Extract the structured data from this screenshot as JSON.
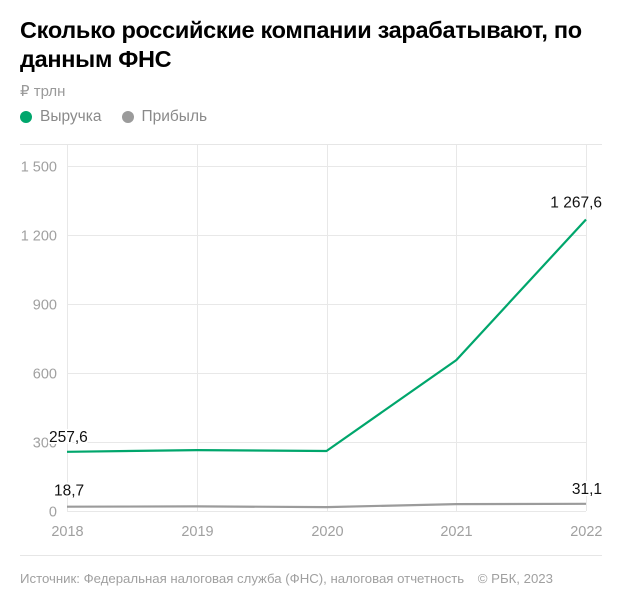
{
  "header": {
    "title": "Сколько российские компании зарабатывают, по данным ФНС",
    "unit": "₽ трлн"
  },
  "legend": [
    {
      "label": "Выручка",
      "color": "#00a66c"
    },
    {
      "label": "Прибыль",
      "color": "#9b9b9b"
    }
  ],
  "footer": {
    "source": "Источник: Федеральная налоговая служба (ФНС), налоговая отчетность",
    "copyright": "© РБК, 2023"
  },
  "chart_data": {
    "type": "line",
    "title": "Сколько российские компании зарабатывают, по данным ФНС",
    "subtitle": "₽ трлн",
    "xlabel": "",
    "ylabel": "₽ трлн",
    "categories": [
      "2018",
      "2019",
      "2020",
      "2021",
      "2022"
    ],
    "x": [
      "2018",
      "2019",
      "2020",
      "2021",
      "2022"
    ],
    "ylim": [
      0,
      1500
    ],
    "yticks": [
      0,
      300,
      600,
      900,
      1200,
      1500
    ],
    "ytick_labels": [
      "0",
      "300",
      "600",
      "900",
      "1 200",
      "1 500"
    ],
    "grid": true,
    "legend_position": "top-left",
    "series": [
      {
        "name": "Выручка",
        "color": "#00a66c",
        "values": [
          257.6,
          265,
          261,
          656,
          1267.6
        ]
      },
      {
        "name": "Прибыль",
        "color": "#9b9b9b",
        "values": [
          18.7,
          20,
          17,
          30,
          31.1
        ]
      }
    ],
    "annotations": [
      {
        "series": "Выручка",
        "x": "2018",
        "text": "257,6"
      },
      {
        "series": "Выручка",
        "x": "2022",
        "text": "1 267,6"
      },
      {
        "series": "Прибыль",
        "x": "2018",
        "text": "18,7"
      },
      {
        "series": "Прибыль",
        "x": "2022",
        "text": "31,1"
      }
    ]
  }
}
